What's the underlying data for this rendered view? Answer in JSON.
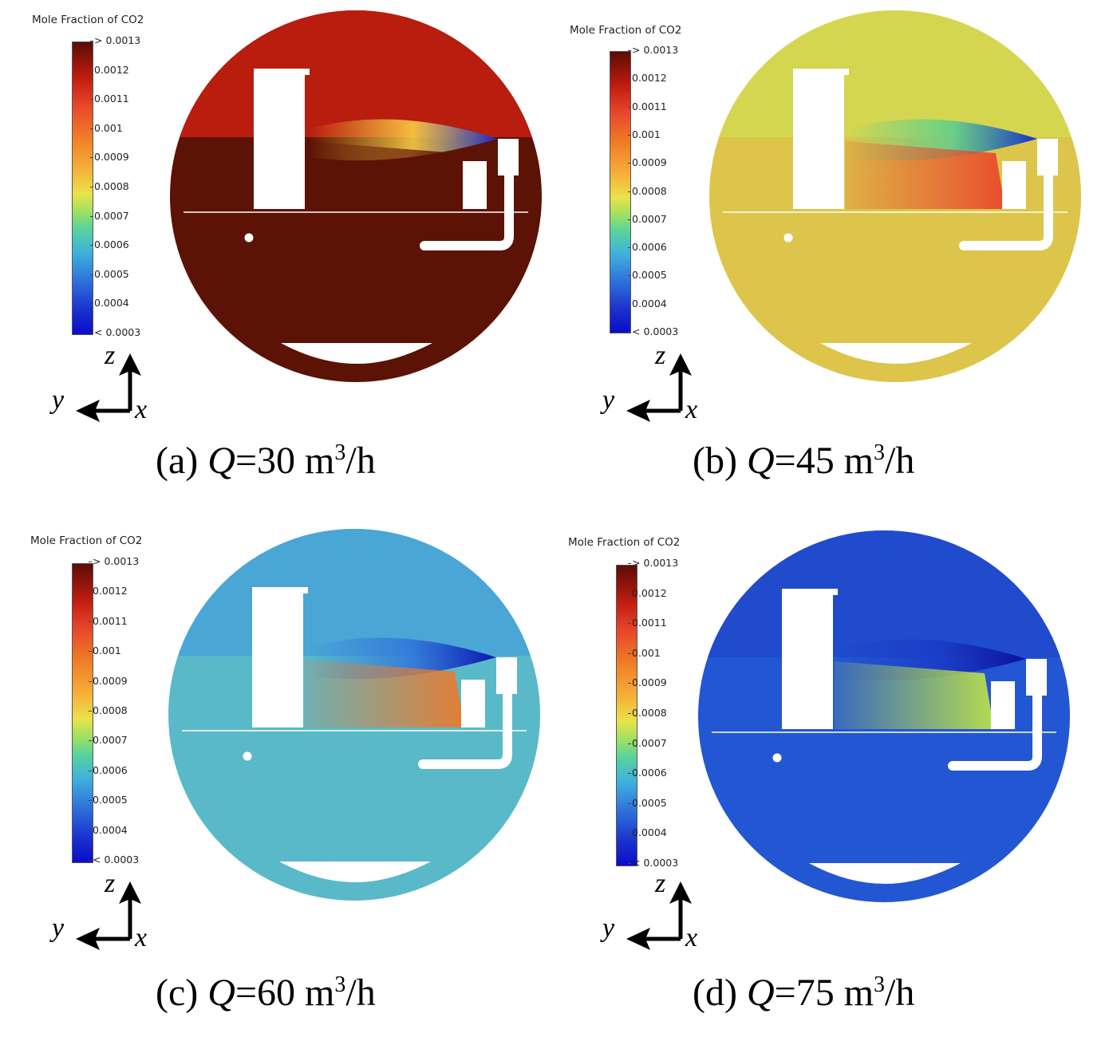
{
  "legend": {
    "title": "Mole Fraction of CO2",
    "ticks": [
      "> 0.0013",
      "0.0012",
      "0.0011",
      "0.001",
      "0.0009",
      "0.0008",
      "0.0007",
      "0.0006",
      "0.0005",
      "0.0004",
      "< 0.0003"
    ]
  },
  "axes": {
    "z": "z",
    "y": "y",
    "x": "x"
  },
  "panels": [
    {
      "label": "(a) ",
      "q": "Q",
      "eq": "=30 m",
      "exp": "3",
      "unit": "/h",
      "colors": {
        "base": "#5c1204",
        "upper": "#b81d0e",
        "plume": "#ffd84a",
        "jet": "#1728c4",
        "zone": "#5c1204"
      }
    },
    {
      "label": "(b) ",
      "q": "Q",
      "eq": "=45 m",
      "exp": "3",
      "unit": "/h",
      "colors": {
        "base": "#dcc54a",
        "upper": "#d4d650",
        "plume": "#58cf8f",
        "jet": "#1630c6",
        "zone": "#e9472c"
      }
    },
    {
      "label": "(c) ",
      "q": "Q",
      "eq": "=60 m",
      "exp": "3",
      "unit": "/h",
      "colors": {
        "base": "#5ab9c8",
        "upper": "#4aa6d4",
        "plume": "#2f75db",
        "jet": "#0b16b0",
        "zone": "#ea7a2e"
      }
    },
    {
      "label": "(d) ",
      "q": "Q",
      "eq": "=75 m",
      "exp": "3",
      "unit": "/h",
      "colors": {
        "base": "#2356d2",
        "upper": "#1f4bcc",
        "plume": "#1a3ac5",
        "jet": "#0a12a0",
        "zone": "#bce247"
      }
    }
  ]
}
